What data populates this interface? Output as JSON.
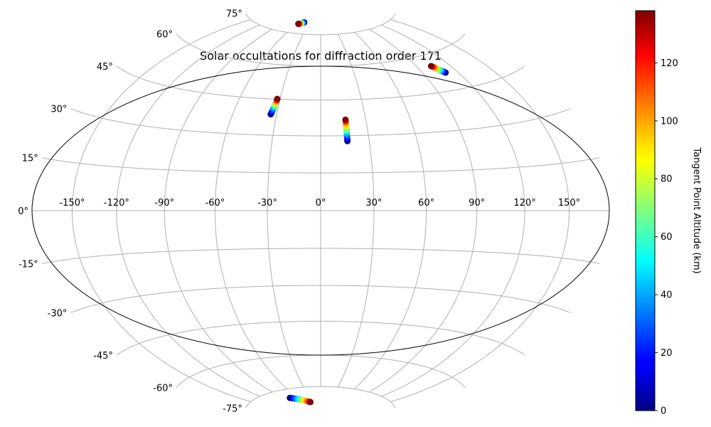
{
  "chart_data": {
    "type": "scatter",
    "projection": "hammer",
    "title": "Solar occultations for diffraction order 171",
    "longitude_ticks": [
      "-150°",
      "-120°",
      "-90°",
      "-60°",
      "-30°",
      "0°",
      "30°",
      "60°",
      "90°",
      "120°",
      "150°"
    ],
    "latitude_ticks": [
      "75°",
      "60°",
      "45°",
      "30°",
      "15°",
      "0°",
      "-15°",
      "-30°",
      "-45°",
      "-60°",
      "-75°"
    ],
    "grid": true,
    "colorbar": {
      "label": "Tangent Point Altitude (km)",
      "colormap": "jet",
      "range": [
        0,
        138
      ],
      "ticks": [
        "0",
        "20",
        "40",
        "60",
        "80",
        "100",
        "120"
      ],
      "position": "right"
    },
    "series": [
      {
        "points": [
          {
            "lon": -45.0,
            "lat": 80.8,
            "alt": 0
          },
          {
            "lon": -46.5,
            "lat": 80.6,
            "alt": 20
          },
          {
            "lon": -48.0,
            "lat": 80.4,
            "alt": 40
          },
          {
            "lon": -49.5,
            "lat": 80.2,
            "alt": 60
          },
          {
            "lon": -51.0,
            "lat": 80.0,
            "alt": 80
          },
          {
            "lon": -52.5,
            "lat": 79.9,
            "alt": 100
          },
          {
            "lon": -54.0,
            "lat": 79.8,
            "alt": 120
          },
          {
            "lon": -55.5,
            "lat": 79.7,
            "alt": 138
          }
        ]
      },
      {
        "points": [
          {
            "lon": -34.0,
            "lat": 38.6,
            "alt": 0
          },
          {
            "lon": -33.7,
            "lat": 39.3,
            "alt": 10
          },
          {
            "lon": -33.4,
            "lat": 40.2,
            "alt": 25
          },
          {
            "lon": -33.1,
            "lat": 41.1,
            "alt": 40
          },
          {
            "lon": -32.8,
            "lat": 42.0,
            "alt": 60
          },
          {
            "lon": -32.5,
            "lat": 42.9,
            "alt": 80
          },
          {
            "lon": -32.3,
            "lat": 43.8,
            "alt": 100
          },
          {
            "lon": -32.1,
            "lat": 44.5,
            "alt": 120
          },
          {
            "lon": -32.0,
            "lat": 45.1,
            "alt": 138
          }
        ]
      },
      {
        "points": [
          {
            "lon": 16.5,
            "lat": 27.8,
            "alt": 0
          },
          {
            "lon": 16.5,
            "lat": 28.6,
            "alt": 10
          },
          {
            "lon": 16.5,
            "lat": 29.6,
            "alt": 25
          },
          {
            "lon": 16.5,
            "lat": 30.7,
            "alt": 40
          },
          {
            "lon": 16.5,
            "lat": 31.8,
            "alt": 55
          },
          {
            "lon": 16.5,
            "lat": 32.8,
            "alt": 70
          },
          {
            "lon": 16.5,
            "lat": 33.8,
            "alt": 85
          },
          {
            "lon": 16.5,
            "lat": 34.8,
            "alt": 100
          },
          {
            "lon": 16.5,
            "lat": 35.8,
            "alt": 120
          },
          {
            "lon": 16.5,
            "lat": 36.6,
            "alt": 138
          }
        ]
      },
      {
        "points": [
          {
            "lon": 109.5,
            "lat": 51.9,
            "alt": 0
          },
          {
            "lon": 108.6,
            "lat": 52.4,
            "alt": 20
          },
          {
            "lon": 107.7,
            "lat": 52.9,
            "alt": 40
          },
          {
            "lon": 106.8,
            "lat": 53.4,
            "alt": 60
          },
          {
            "lon": 105.9,
            "lat": 53.9,
            "alt": 80
          },
          {
            "lon": 105.0,
            "lat": 54.4,
            "alt": 100
          },
          {
            "lon": 104.1,
            "lat": 54.9,
            "alt": 120
          },
          {
            "lon": 103.2,
            "lat": 55.4,
            "alt": 138
          }
        ]
      },
      {
        "points": [
          {
            "lon": -75.0,
            "lat": -79.2,
            "alt": 0
          },
          {
            "lon": -70.5,
            "lat": -79.6,
            "alt": 15
          },
          {
            "lon": -66.0,
            "lat": -80.0,
            "alt": 30
          },
          {
            "lon": -61.5,
            "lat": -80.4,
            "alt": 45
          },
          {
            "lon": -57.0,
            "lat": -80.8,
            "alt": 60
          },
          {
            "lon": -52.5,
            "lat": -81.2,
            "alt": 75
          },
          {
            "lon": -48.0,
            "lat": -81.6,
            "alt": 90
          },
          {
            "lon": -43.5,
            "lat": -82.0,
            "alt": 105
          },
          {
            "lon": -39.0,
            "lat": -82.4,
            "alt": 120
          },
          {
            "lon": -34.5,
            "lat": -82.7,
            "alt": 138
          }
        ]
      }
    ]
  }
}
